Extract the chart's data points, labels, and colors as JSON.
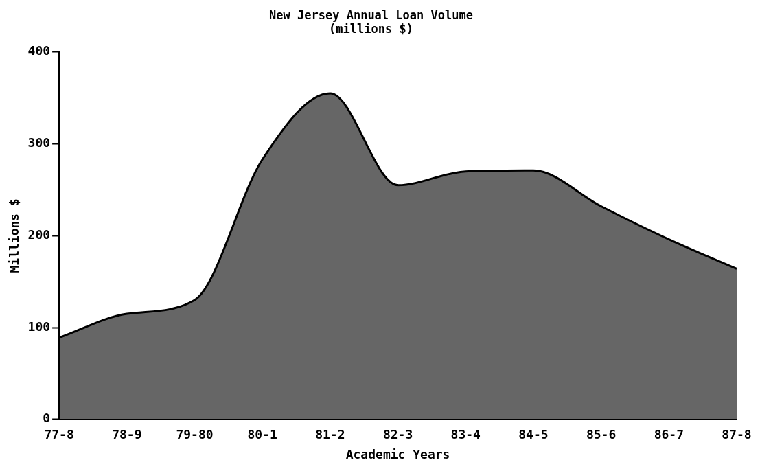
{
  "chart_data": {
    "type": "area",
    "title": [
      "New Jersey Annual Loan Volume",
      "(millions $)"
    ],
    "xlabel": "Academic Years",
    "ylabel": "Millions $",
    "categories": [
      "77-8",
      "78-9",
      "79-80",
      "80-1",
      "81-2",
      "82-3",
      "83-4",
      "84-5",
      "85-6",
      "86-7",
      "87-8"
    ],
    "series": [
      {
        "color": "#000000",
        "values": [
          89,
          115,
          130,
          283,
          355,
          255,
          270,
          271,
          232,
          196,
          164
        ]
      }
    ],
    "ylim": [
      0,
      400
    ],
    "yticks": [
      0,
      100,
      200,
      300,
      400
    ],
    "grid": false,
    "legend": false
  }
}
